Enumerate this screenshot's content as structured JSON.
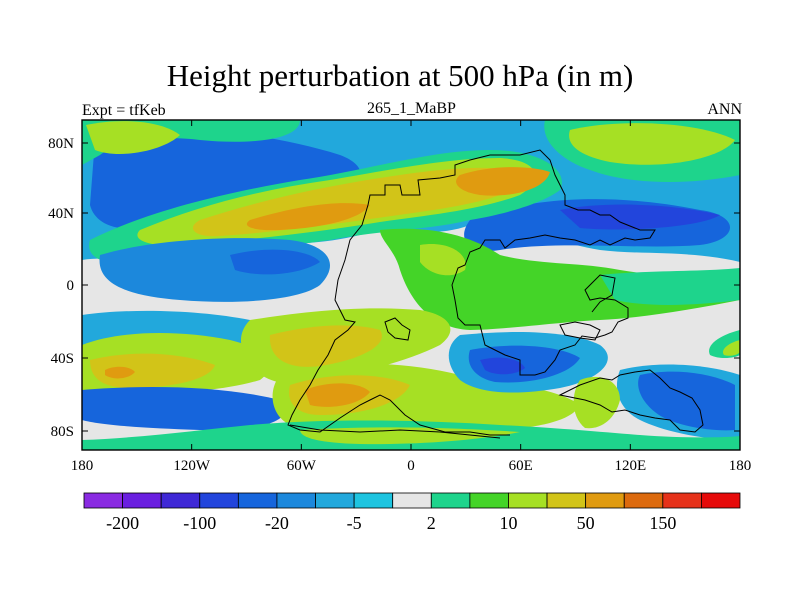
{
  "title": "Height perturbation at 500 hPa (in m)",
  "left_label": "Expt = tfKeb",
  "center_label": "265_1_MaBP",
  "right_label": "ANN",
  "map": {
    "projection": "cylindrical equidistant",
    "x_ticks": [
      "180",
      "120W",
      "60W",
      "0",
      "60E",
      "120E",
      "180"
    ],
    "y_ticks": [
      "80N",
      "40N",
      "0",
      "40S",
      "80S"
    ],
    "land_outline_color": "#000000"
  },
  "colorbar": {
    "colors": [
      "#8a2be2",
      "#6a1fe0",
      "#3f28d6",
      "#2245dc",
      "#1665dc",
      "#1c88dc",
      "#22a8dc",
      "#1ec4e0",
      "#e6e6e6",
      "#1ed48c",
      "#44d428",
      "#a6e024",
      "#d2c418",
      "#e09b10",
      "#dc6a0e",
      "#e6321a",
      "#e60a0a"
    ],
    "labels": [
      "-200",
      "-100",
      "-20",
      "-5",
      "2",
      "10",
      "50",
      "150"
    ]
  }
}
